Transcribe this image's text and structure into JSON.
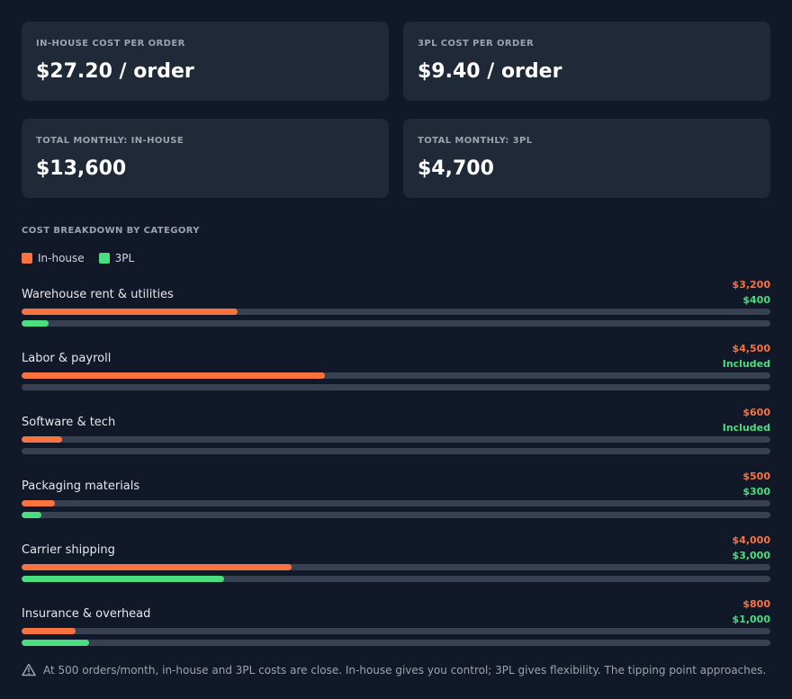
{
  "cards": [
    {
      "label": "IN-HOUSE COST PER ORDER",
      "value": "$27.20 / order"
    },
    {
      "label": "3PL COST PER ORDER",
      "value": "$9.40 / order"
    },
    {
      "label": "TOTAL MONTHLY: IN-HOUSE",
      "value": "$13,600"
    },
    {
      "label": "TOTAL MONTHLY: 3PL",
      "value": "$4,700"
    }
  ],
  "breakdown": {
    "title": "COST BREAKDOWN BY CATEGORY",
    "legend": [
      {
        "label": "In-house",
        "color": "#f97340"
      },
      {
        "label": "3PL",
        "color": "#4ade80"
      }
    ],
    "scale_max": 11100,
    "rows": [
      {
        "name": "Warehouse rent & utilities",
        "inhouse_label": "$3,200",
        "tpl_label": "$400",
        "inhouse": 3200,
        "tpl": 400
      },
      {
        "name": "Labor & payroll",
        "inhouse_label": "$4,500",
        "tpl_label": "Included",
        "inhouse": 4500,
        "tpl": 0
      },
      {
        "name": "Software & tech",
        "inhouse_label": "$600",
        "tpl_label": "Included",
        "inhouse": 600,
        "tpl": 0
      },
      {
        "name": "Packaging materials",
        "inhouse_label": "$500",
        "tpl_label": "$300",
        "inhouse": 500,
        "tpl": 300
      },
      {
        "name": "Carrier shipping",
        "inhouse_label": "$4,000",
        "tpl_label": "$3,000",
        "inhouse": 4000,
        "tpl": 3000
      },
      {
        "name": "Insurance & overhead",
        "inhouse_label": "$800",
        "tpl_label": "$1,000",
        "inhouse": 800,
        "tpl": 1000
      }
    ]
  },
  "note": {
    "icon": "warning-icon",
    "text": "At 500 orders/month, in-house and 3PL costs are close. In-house gives you control; 3PL gives flexibility. The tipping point approaches."
  }
}
